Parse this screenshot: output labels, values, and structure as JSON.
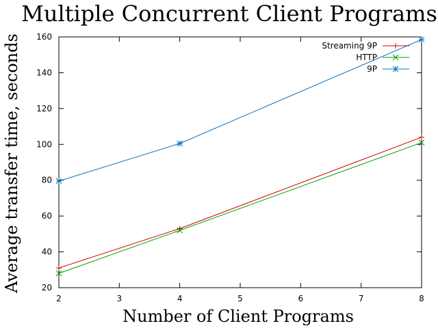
{
  "chart_data": {
    "type": "line",
    "title": "Multiple Concurrent Client Programs",
    "xlabel": "Number of Client Programs",
    "ylabel": "Average transfer time, seconds",
    "xlim": [
      2,
      8
    ],
    "ylim": [
      20,
      160
    ],
    "xticks": [
      2,
      3,
      4,
      5,
      6,
      7,
      8
    ],
    "yticks": [
      20,
      40,
      60,
      80,
      100,
      120,
      140,
      160
    ],
    "grid": false,
    "legend_position": "top-right",
    "series": [
      {
        "name": "Streaming 9P",
        "color": "#cc0000",
        "marker": "plus",
        "x": [
          2,
          4,
          8
        ],
        "y": [
          31,
          53,
          104
        ]
      },
      {
        "name": "HTTP",
        "color": "#00a000",
        "marker": "cross",
        "x": [
          2,
          4,
          8
        ],
        "y": [
          28,
          52,
          101
        ]
      },
      {
        "name": "9P",
        "color": "#0070c0",
        "marker": "star",
        "x": [
          2,
          4,
          8
        ],
        "y": [
          79.5,
          100.5,
          158.5
        ]
      }
    ]
  }
}
